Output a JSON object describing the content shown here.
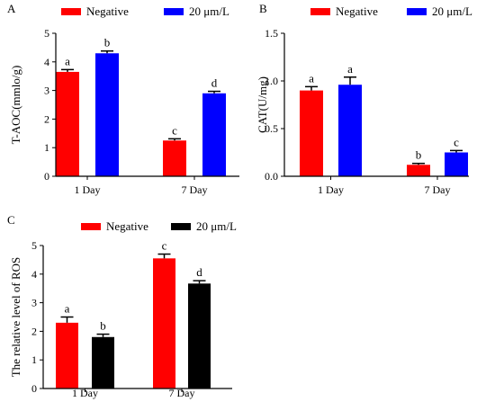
{
  "colors": {
    "negative": "#ff0000",
    "treated_ab": "#0000ff",
    "treated_c": "#000000",
    "axis": "#000000"
  },
  "chart_data": [
    {
      "panel_label": "A",
      "type": "bar",
      "categories": [
        "1 Day",
        "7 Day"
      ],
      "series": [
        {
          "name": "Negative",
          "color": "#ff0000",
          "values": [
            3.65,
            1.25
          ],
          "errors": [
            0.08,
            0.06
          ],
          "letters": [
            "a",
            "c"
          ]
        },
        {
          "name": "20 μm/L",
          "color": "#0000ff",
          "values": [
            4.3,
            2.9
          ],
          "errors": [
            0.08,
            0.07
          ],
          "letters": [
            "b",
            "d"
          ]
        }
      ],
      "ylabel": "T-AOC(mmlo/g)",
      "xlabel": "",
      "ylim": [
        0,
        5
      ],
      "yticks": [
        "0",
        "1",
        "2",
        "3",
        "4",
        "5"
      ],
      "legend": "top",
      "grid": false
    },
    {
      "panel_label": "B",
      "type": "bar",
      "categories": [
        "1 Day",
        "7 Day"
      ],
      "series": [
        {
          "name": "Negative",
          "color": "#ff0000",
          "values": [
            0.9,
            0.12
          ],
          "errors": [
            0.04,
            0.015
          ],
          "letters": [
            "a",
            "b"
          ]
        },
        {
          "name": "20 μm/L",
          "color": "#0000ff",
          "values": [
            0.96,
            0.25
          ],
          "errors": [
            0.08,
            0.02
          ],
          "letters": [
            "a",
            "c"
          ]
        }
      ],
      "ylabel": "CAT(U/mg)",
      "xlabel": "",
      "ylim": [
        0,
        1.5
      ],
      "yticks": [
        "0.0",
        "0.5",
        "1.0",
        "1.5"
      ],
      "legend": "top",
      "grid": false
    },
    {
      "panel_label": "C",
      "type": "bar",
      "categories": [
        "1 Day",
        "7 Day"
      ],
      "series": [
        {
          "name": "Negative",
          "color": "#ff0000",
          "values": [
            2.3,
            4.55
          ],
          "errors": [
            0.2,
            0.15
          ],
          "letters": [
            "a",
            "c"
          ]
        },
        {
          "name": "20 μm/L",
          "color": "#000000",
          "values": [
            1.8,
            3.67
          ],
          "errors": [
            0.1,
            0.1
          ],
          "letters": [
            "b",
            "d"
          ]
        }
      ],
      "ylabel": "The relative level of ROS",
      "xlabel": "",
      "ylim": [
        0,
        5
      ],
      "yticks": [
        "0",
        "1",
        "2",
        "3",
        "4",
        "5"
      ],
      "legend": "top",
      "grid": false
    }
  ]
}
